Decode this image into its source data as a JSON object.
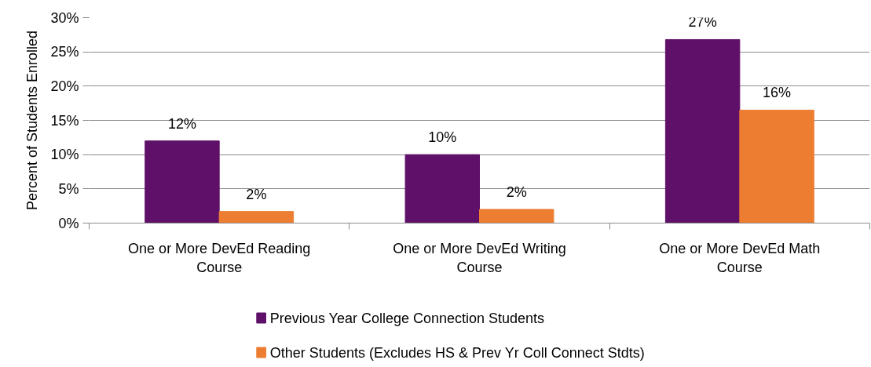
{
  "chart_data": {
    "type": "bar",
    "ylabel": "Percent of Students Enrolled",
    "categories": [
      "One or More DevEd Reading Course",
      "One or More DevEd Writing Course",
      "One or More DevEd Math Course"
    ],
    "series": [
      {
        "name": "Previous Year College Connection Students",
        "color": "#5f1068",
        "values": [
          12,
          10,
          26.8
        ],
        "value_labels": [
          "12%",
          "10%",
          "27%"
        ]
      },
      {
        "name": "Other Students (Excludes HS & Prev Yr Coll Connect  Stdts)",
        "color": "#ed7d31",
        "values": [
          1.7,
          2.0,
          16.5
        ],
        "value_labels": [
          "2%",
          "2%",
          "16%"
        ]
      }
    ],
    "ylim": [
      0,
      30
    ],
    "yticks": [
      {
        "value": 0,
        "label": "0%"
      },
      {
        "value": 5,
        "label": "5%"
      },
      {
        "value": 10,
        "label": "10%"
      },
      {
        "value": 15,
        "label": "15%"
      },
      {
        "value": 20,
        "label": "20%"
      },
      {
        "value": 25,
        "label": "25%"
      },
      {
        "value": 30,
        "label": "30%"
      }
    ],
    "grid": "y",
    "legend": "bottom"
  }
}
